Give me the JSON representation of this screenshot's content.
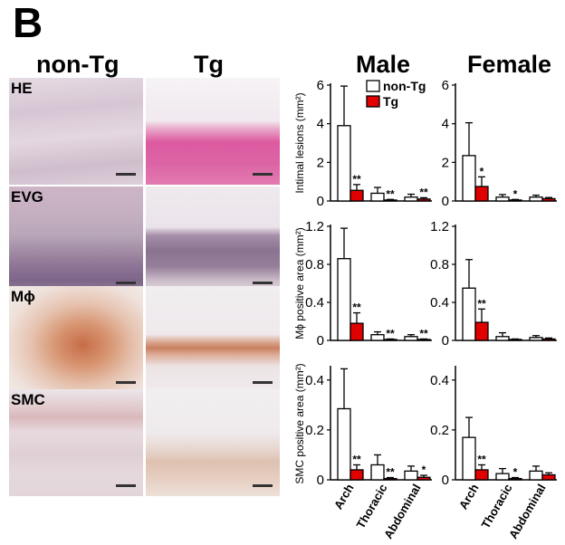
{
  "panel_label": "B",
  "micrograph_columns": [
    "non-Tg",
    "Tg"
  ],
  "micrograph_rows": [
    "HE",
    "EVG",
    "Mϕ",
    "SMC"
  ],
  "chart_columns": [
    "Male",
    "Female"
  ],
  "colors": {
    "nonTg": "#ffffff",
    "Tg": "#e00000",
    "axis": "#000000"
  },
  "chart_data": [
    {
      "type": "bar",
      "group": "Male",
      "ylabel": "Intimal lesions (mm²)",
      "categories": [
        "Arch",
        "Thoracic",
        "Abdominal"
      ],
      "ylim": [
        0,
        6
      ],
      "yticks": [
        "0",
        "2",
        "4",
        "6"
      ],
      "yticks_values": [
        0,
        2,
        4,
        6
      ],
      "legend": [
        "non-Tg",
        "Tg"
      ],
      "series": [
        {
          "name": "non-Tg",
          "values": [
            3.9,
            0.4,
            0.2
          ],
          "errors": [
            2.05,
            0.3,
            0.15
          ]
        },
        {
          "name": "Tg",
          "values": [
            0.55,
            0.05,
            0.1
          ],
          "errors": [
            0.3,
            0.03,
            0.07
          ],
          "annotations": [
            "**",
            "**",
            "**"
          ]
        }
      ]
    },
    {
      "type": "bar",
      "group": "Female",
      "ylabel": "",
      "categories": [
        "Arch",
        "Thoracic",
        "Abdominal"
      ],
      "ylim": [
        0,
        6
      ],
      "yticks": [
        "0",
        "2",
        "4",
        "6"
      ],
      "yticks_values": [
        0,
        2,
        4,
        6
      ],
      "series": [
        {
          "name": "non-Tg",
          "values": [
            2.35,
            0.2,
            0.2
          ],
          "errors": [
            1.7,
            0.13,
            0.1
          ]
        },
        {
          "name": "Tg",
          "values": [
            0.75,
            0.05,
            0.12
          ],
          "errors": [
            0.5,
            0.03,
            0.06
          ],
          "annotations": [
            "*",
            "*",
            ""
          ]
        }
      ]
    },
    {
      "type": "bar",
      "group": "Male",
      "ylabel": "Mϕ positive area (mm²)",
      "categories": [
        "Arch",
        "Thoracic",
        "Abdominal"
      ],
      "ylim": [
        0,
        1.2
      ],
      "yticks": [
        "0",
        "0.4",
        "0.8",
        "1.2"
      ],
      "yticks_values": [
        0,
        0.4,
        0.8,
        1.2
      ],
      "series": [
        {
          "name": "non-Tg",
          "values": [
            0.86,
            0.06,
            0.04
          ],
          "errors": [
            0.32,
            0.03,
            0.02
          ]
        },
        {
          "name": "Tg",
          "values": [
            0.18,
            0.01,
            0.01
          ],
          "errors": [
            0.11,
            0.005,
            0.005
          ],
          "annotations": [
            "**",
            "**",
            "**"
          ]
        }
      ]
    },
    {
      "type": "bar",
      "group": "Female",
      "ylabel": "",
      "categories": [
        "Arch",
        "Thoracic",
        "Abdominal"
      ],
      "ylim": [
        0,
        1.2
      ],
      "yticks": [
        "0",
        "0.4",
        "0.8",
        "1.2"
      ],
      "yticks_values": [
        0,
        0.4,
        0.8,
        1.2
      ],
      "series": [
        {
          "name": "non-Tg",
          "values": [
            0.55,
            0.04,
            0.03
          ],
          "errors": [
            0.3,
            0.04,
            0.02
          ]
        },
        {
          "name": "Tg",
          "values": [
            0.19,
            0.01,
            0.015
          ],
          "errors": [
            0.14,
            0.005,
            0.01
          ],
          "annotations": [
            "**",
            "",
            ""
          ]
        }
      ]
    },
    {
      "type": "bar",
      "group": "Male",
      "ylabel": "SMC positive area (mm²)",
      "categories": [
        "Arch",
        "Thoracic",
        "Abdominal"
      ],
      "ylim": [
        0,
        0.45
      ],
      "yticks": [
        "0",
        "0.2",
        "0.4"
      ],
      "yticks_values": [
        0,
        0.2,
        0.4
      ],
      "series": [
        {
          "name": "non-Tg",
          "values": [
            0.285,
            0.06,
            0.035
          ],
          "errors": [
            0.16,
            0.04,
            0.02
          ]
        },
        {
          "name": "Tg",
          "values": [
            0.04,
            0.005,
            0.01
          ],
          "errors": [
            0.02,
            0.004,
            0.008
          ],
          "annotations": [
            "**",
            "**",
            "*"
          ]
        }
      ]
    },
    {
      "type": "bar",
      "group": "Female",
      "ylabel": "",
      "categories": [
        "Arch",
        "Thoracic",
        "Abdominal"
      ],
      "ylim": [
        0,
        0.45
      ],
      "yticks": [
        "0",
        "0.2",
        "0.4"
      ],
      "yticks_values": [
        0,
        0.2,
        0.4
      ],
      "series": [
        {
          "name": "non-Tg",
          "values": [
            0.17,
            0.025,
            0.035
          ],
          "errors": [
            0.08,
            0.02,
            0.02
          ]
        },
        {
          "name": "Tg",
          "values": [
            0.04,
            0.005,
            0.02
          ],
          "errors": [
            0.02,
            0.004,
            0.008
          ],
          "annotations": [
            "**",
            "*",
            ""
          ]
        }
      ]
    }
  ]
}
